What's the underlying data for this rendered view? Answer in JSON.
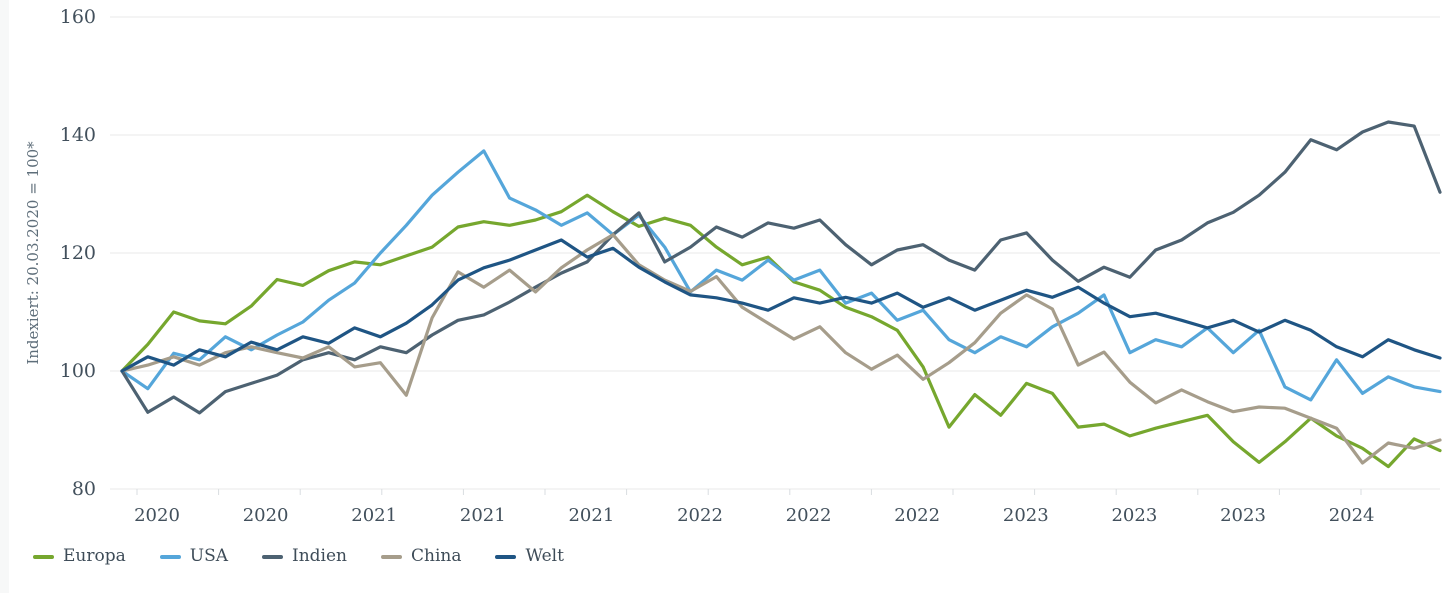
{
  "y_axis": {
    "title": "Indexiert: 20.03.2020 = 100*",
    "ticks": [
      80,
      100,
      120,
      140,
      160
    ]
  },
  "x_axis": {
    "labels": [
      "2020",
      "2020",
      "2021",
      "2021",
      "2021",
      "2022",
      "2022",
      "2022",
      "2023",
      "2023",
      "2023",
      "2024"
    ]
  },
  "legend": {
    "items": [
      {
        "label": "Europa",
        "color": "#76a72e"
      },
      {
        "label": "USA",
        "color": "#55a6da"
      },
      {
        "label": "Indien",
        "color": "#4d6272"
      },
      {
        "label": "China",
        "color": "#a69d8b"
      },
      {
        "label": "Welt",
        "color": "#1f5584"
      }
    ]
  },
  "colors": {
    "grid": "#e9e9e9",
    "axis_tick": "#d9dde0",
    "tick_label": "#42505c",
    "y_title": "#5e6e7a"
  },
  "chart_data": {
    "type": "line",
    "title": "",
    "xlabel": "",
    "ylabel": "Indexiert: 20.03.2020 = 100*",
    "ylim": [
      80,
      160
    ],
    "y_ticks": [
      80,
      100,
      120,
      140,
      160
    ],
    "x_tick_labels": [
      "2020",
      "2020",
      "2021",
      "2021",
      "2021",
      "2022",
      "2022",
      "2022",
      "2023",
      "2023",
      "2023",
      "2024"
    ],
    "grid": "horizontal",
    "legend_position": "bottom-left",
    "series": [
      {
        "name": "Europa",
        "color": "#76a72e",
        "values": [
          100,
          104.5,
          110,
          108.5,
          108,
          111,
          115.5,
          114.5,
          117,
          118.5,
          118,
          119.5,
          121,
          124.4,
          125.3,
          124.7,
          125.6,
          127,
          129.8,
          127,
          124.5,
          125.9,
          124.7,
          121,
          118,
          119.3,
          115.1,
          113.7,
          110.8,
          109.2,
          106.9,
          100.7,
          90.5,
          96,
          92.5,
          97.9,
          96.2,
          90.5,
          91,
          89,
          90.3,
          91.4,
          92.5,
          88,
          84.5,
          88,
          92,
          89,
          86.9,
          83.8,
          88.5,
          86.5
        ]
      },
      {
        "name": "USA",
        "color": "#55a6da",
        "values": [
          100,
          97,
          103,
          101.9,
          105.8,
          103.6,
          106.1,
          108.3,
          112,
          114.9,
          120,
          124.7,
          129.8,
          133.7,
          137.3,
          129.3,
          127.3,
          124.7,
          126.8,
          123.1,
          126.4,
          121,
          113.4,
          117.1,
          115.4,
          118.8,
          115.4,
          117.1,
          111.5,
          113.2,
          108.6,
          110.3,
          105.3,
          103.1,
          105.8,
          104.1,
          107.5,
          109.8,
          112.9,
          103.1,
          105.3,
          104.1,
          107.3,
          103.1,
          106.9,
          97.3,
          95.1,
          101.9,
          96.2,
          99,
          97.3,
          96.5
        ]
      },
      {
        "name": "Indien",
        "color": "#4d6272",
        "values": [
          100,
          93,
          95.6,
          92.9,
          96.5,
          97.9,
          99.3,
          101.9,
          103.1,
          101.9,
          104.1,
          103.1,
          106.1,
          108.6,
          109.5,
          111.7,
          114.2,
          116.6,
          118.5,
          123.1,
          126.8,
          118.5,
          121,
          124.4,
          122.7,
          125.1,
          124.2,
          125.6,
          121.4,
          118,
          120.5,
          121.4,
          118.8,
          117.1,
          122.2,
          123.4,
          118.8,
          115.2,
          117.6,
          115.9,
          120.5,
          122.2,
          125.1,
          126.9,
          129.8,
          133.7,
          139.2,
          137.5,
          140.5,
          142.2,
          141.5,
          130.3
        ]
      },
      {
        "name": "China",
        "color": "#a69d8b",
        "values": [
          100,
          101,
          102.4,
          101,
          103.1,
          104.1,
          103.1,
          102.2,
          104.1,
          100.7,
          101.4,
          95.9,
          109,
          116.8,
          114.2,
          117.1,
          113.4,
          117.5,
          120.5,
          123.1,
          118,
          115.4,
          113.5,
          116,
          110.8,
          108.1,
          105.4,
          107.5,
          103.1,
          100.3,
          102.7,
          98.6,
          101.4,
          104.8,
          109.8,
          112.9,
          110.5,
          101,
          103.2,
          98.1,
          94.6,
          96.8,
          94.8,
          93.1,
          93.9,
          93.7,
          92,
          90.3,
          84.4,
          87.8,
          86.9,
          88.3
        ]
      },
      {
        "name": "Welt",
        "color": "#1f5584",
        "values": [
          100,
          102.4,
          101,
          103.6,
          102.4,
          104.9,
          103.6,
          105.8,
          104.7,
          107.3,
          105.8,
          108.1,
          111.2,
          115.4,
          117.5,
          118.8,
          120.5,
          122.2,
          119.3,
          120.8,
          117.6,
          115.1,
          112.9,
          112.4,
          111.5,
          110.3,
          112.4,
          111.5,
          112.5,
          111.5,
          113.2,
          110.8,
          112.4,
          110.3,
          112,
          113.7,
          112.5,
          114.2,
          111.5,
          109.2,
          109.8,
          108.6,
          107.3,
          108.6,
          106.6,
          108.6,
          106.9,
          104.1,
          102.4,
          105.3,
          103.6,
          102.2
        ]
      }
    ]
  }
}
